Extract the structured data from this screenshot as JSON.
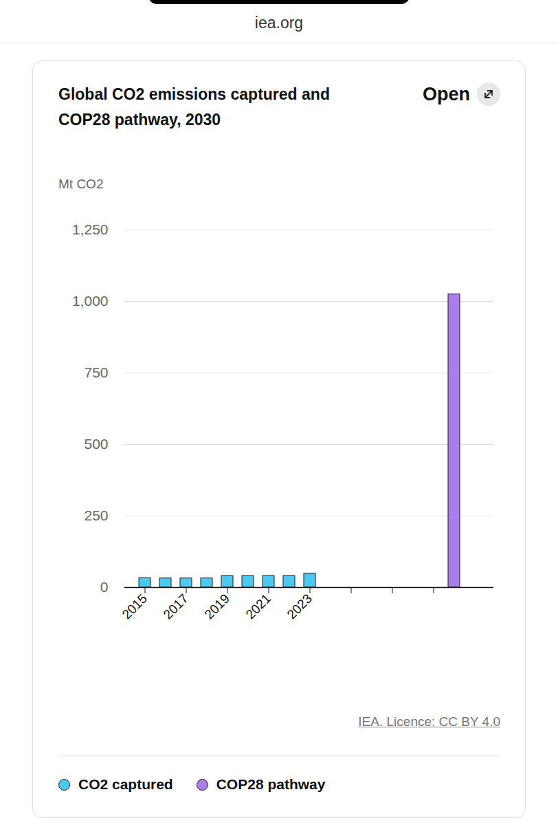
{
  "site": "iea.org",
  "button": "Open",
  "chart_data": {
    "type": "bar",
    "title": "Global CO2 emissions captured and COP28 pathway, 2030",
    "y_label": "Mt CO2",
    "categories": [
      "2015",
      null,
      "2017",
      null,
      "2019",
      null,
      "2021",
      null,
      "2023",
      null,
      null,
      null,
      null,
      null,
      null,
      null
    ],
    "series": [
      {
        "name": "CO2 captured",
        "color": "#4cc9f0",
        "values": [
          33,
          32,
          32,
          32,
          40,
          40,
          40,
          40,
          48,
          null,
          null,
          null,
          null,
          null,
          null,
          null
        ]
      },
      {
        "name": "COP28 pathway",
        "color": "#a97ee8",
        "values": [
          null,
          null,
          null,
          null,
          null,
          null,
          null,
          null,
          null,
          null,
          null,
          null,
          null,
          null,
          null,
          1025
        ]
      }
    ],
    "ylim": [
      0,
      1250
    ],
    "yticks": [
      0,
      250,
      500,
      750,
      1000,
      1250
    ],
    "grid": true,
    "legend": "bottom",
    "source": "IEA. Licence: CC BY 4.0"
  }
}
